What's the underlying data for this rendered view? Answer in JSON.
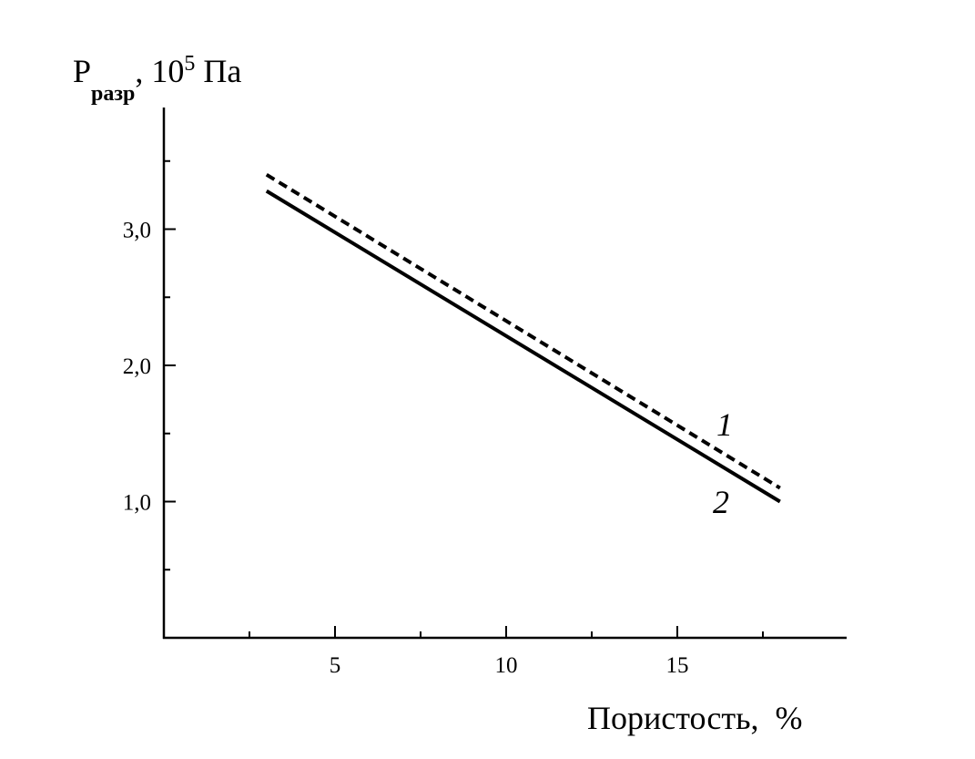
{
  "chart_data": {
    "type": "line",
    "xlabel": "Пористость,  %",
    "ylabel": {
      "main": "P",
      "subscript": "разр",
      "unit_prefix": ", 10",
      "superscript": "5",
      "unit_suffix": " Па"
    },
    "xlim": [
      0,
      20
    ],
    "ylim": [
      0,
      3.9
    ],
    "x_ticks_major": [
      5,
      10,
      15
    ],
    "x_tick_labels": [
      "5",
      "10",
      "15"
    ],
    "x_ticks_minor": [
      2.5,
      7.5,
      12.5,
      17.5
    ],
    "y_ticks_major": [
      1.0,
      2.0,
      3.0
    ],
    "y_tick_labels": [
      "1,0",
      "2,0",
      "3,0"
    ],
    "y_ticks_minor": [
      0.5,
      1.5,
      2.5,
      3.5
    ],
    "grid": false,
    "series": [
      {
        "name": "1",
        "style": "dashed",
        "color": "#000000",
        "x": [
          3,
          18
        ],
        "y": [
          3.4,
          1.1
        ]
      },
      {
        "name": "2",
        "style": "solid",
        "color": "#000000",
        "x": [
          3,
          18
        ],
        "y": [
          3.28,
          1.0
        ]
      }
    ]
  }
}
